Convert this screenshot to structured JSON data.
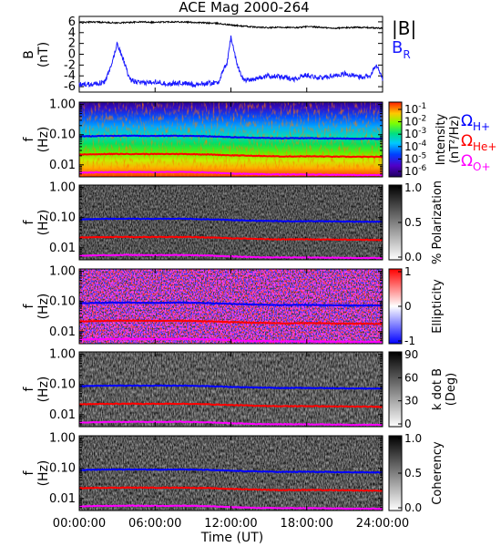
{
  "title": "ACE Mag 2000-264",
  "xlabel": "Time (UT)",
  "xticks": [
    "00:00:00",
    "06:00:00",
    "12:00:00",
    "18:00:00",
    "24:00:00"
  ],
  "xtick_hours": [
    0,
    6,
    12,
    18,
    24
  ],
  "freq_ticks": [
    "1.00",
    "0.10",
    "0.01"
  ],
  "freq_tick_values": [
    1.0,
    0.1,
    0.01
  ],
  "ylabel_f": [
    "f",
    "(Hz)"
  ],
  "b_panel": {
    "ylabel": [
      "B",
      "(nT)"
    ],
    "yticks": [
      "6",
      "4",
      "2",
      "0",
      "-2",
      "-4",
      "-6"
    ],
    "ytick_values": [
      6,
      4,
      2,
      0,
      -2,
      -4,
      -6
    ],
    "legend": [
      {
        "label": "|B|",
        "color": "#000000"
      },
      {
        "label": "B",
        "sub": "R",
        "color": "#1a1aff"
      }
    ]
  },
  "panels": [
    {
      "key": "intensity",
      "colorbar_title": [
        "Intensity",
        "(nT²/Hz)"
      ],
      "colorbar_ticks": [
        {
          "base": "10",
          "exp": "-1"
        },
        {
          "base": "10",
          "exp": "-2"
        },
        {
          "base": "10",
          "exp": "-3"
        },
        {
          "base": "10",
          "exp": "-4"
        },
        {
          "base": "10",
          "exp": "-5"
        },
        {
          "base": "10",
          "exp": "-6"
        }
      ]
    },
    {
      "key": "polarization",
      "colorbar_title": [
        "% Polarization"
      ],
      "colorbar_ticks": [
        "1.0",
        "0.5",
        "0.0"
      ]
    },
    {
      "key": "ellipticity",
      "colorbar_title": [
        "Ellipticity"
      ],
      "colorbar_ticks": [
        "1",
        "0",
        "-1"
      ]
    },
    {
      "key": "kdotb",
      "colorbar_title": [
        "k dot B",
        "(Deg)"
      ],
      "colorbar_ticks": [
        "90",
        "60",
        "30",
        "0"
      ]
    },
    {
      "key": "coherency",
      "colorbar_title": [
        "Coherency"
      ],
      "colorbar_ticks": [
        "1.0",
        "0.5",
        "0.0"
      ]
    }
  ],
  "gyro_legend": [
    {
      "symbol": "Ω",
      "sub": "H+",
      "color": "#0000ff"
    },
    {
      "symbol": "Ω",
      "sub": "He+",
      "color": "#ff0000"
    },
    {
      "symbol": "Ω",
      "sub": "O+",
      "color": "#ff00ff"
    }
  ],
  "chart_data": {
    "type": "line",
    "title": "ACE Mag 2000-264",
    "xlabel": "Time (UT)",
    "xlim": [
      0,
      24
    ],
    "b_field": {
      "ylim": [
        -7,
        7
      ],
      "series": [
        {
          "name": "|B|",
          "color": "#000000",
          "x": [
            0,
            1,
            2,
            3,
            4,
            5,
            6,
            7,
            8,
            9,
            10,
            11,
            12,
            13,
            14,
            15,
            16,
            17,
            18,
            19,
            20,
            21,
            22,
            23,
            24
          ],
          "values": [
            5.8,
            6.0,
            5.9,
            5.8,
            5.9,
            6.0,
            5.9,
            6.0,
            6.0,
            5.9,
            5.8,
            5.7,
            5.4,
            5.2,
            5.0,
            4.9,
            5.0,
            4.9,
            5.1,
            5.0,
            4.8,
            4.9,
            5.0,
            4.9,
            4.8
          ]
        },
        {
          "name": "B_R",
          "color": "#1a1aff",
          "x": [
            0,
            1,
            2,
            2.5,
            3,
            3.5,
            4,
            5,
            6,
            7,
            8,
            9,
            10,
            11,
            11.7,
            12,
            12.5,
            13,
            14,
            15,
            16,
            17,
            18,
            19,
            20,
            21,
            22,
            23,
            23.5,
            24
          ],
          "values": [
            -5.6,
            -5.5,
            -5.2,
            -2.5,
            2.0,
            -1.0,
            -4.8,
            -5.4,
            -5.0,
            -5.5,
            -5.3,
            -5.6,
            -5.4,
            -5.2,
            -1.5,
            3.2,
            -2.0,
            -4.8,
            -4.5,
            -4.0,
            -4.2,
            -4.6,
            -3.8,
            -4.4,
            -4.0,
            -3.6,
            -4.2,
            -4.0,
            -2.0,
            -4.5
          ]
        }
      ]
    },
    "gyrofrequencies": {
      "unit": "Hz",
      "series": [
        {
          "name": "Ω_H+",
          "color": "#0000ff",
          "x": [
            0,
            2,
            4,
            6,
            8,
            10,
            12,
            14,
            16,
            18,
            20,
            22,
            24
          ],
          "values": [
            0.088,
            0.091,
            0.092,
            0.091,
            0.092,
            0.089,
            0.083,
            0.079,
            0.076,
            0.077,
            0.075,
            0.074,
            0.073
          ]
        },
        {
          "name": "Ω_He+",
          "color": "#ff0000",
          "x": [
            0,
            2,
            4,
            6,
            8,
            10,
            12,
            14,
            16,
            18,
            20,
            22,
            24
          ],
          "values": [
            0.022,
            0.0228,
            0.023,
            0.0228,
            0.023,
            0.0222,
            0.0208,
            0.0198,
            0.019,
            0.0192,
            0.0188,
            0.0185,
            0.0182
          ]
        },
        {
          "name": "Ω_O+",
          "color": "#ff00ff",
          "x": [
            0,
            2,
            4,
            6,
            8,
            10,
            12,
            14,
            16,
            18,
            20,
            22,
            24
          ],
          "values": [
            0.0055,
            0.0057,
            0.0058,
            0.0057,
            0.0058,
            0.0056,
            0.0052,
            0.0049,
            0.0048,
            0.0048,
            0.0047,
            0.0046,
            0.0046
          ]
        }
      ]
    },
    "frequency_axis": {
      "scale": "log",
      "ylim": [
        0.004,
        1.2
      ]
    },
    "spectrogram_panels": [
      "Intensity (nT²/Hz)",
      "% Polarization",
      "Ellipticity",
      "k dot B (Deg)",
      "Coherency"
    ]
  }
}
